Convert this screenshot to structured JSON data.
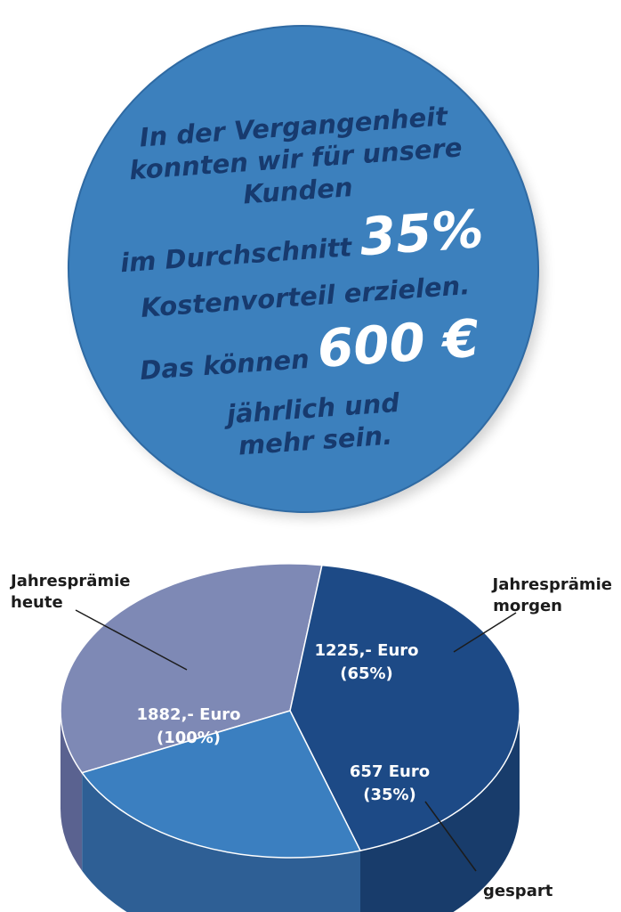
{
  "badge": {
    "line1": "In der Vergangenheit",
    "line2": "konnten wir für unsere",
    "line3": "Kunden",
    "line4_text": "im Durchschnitt",
    "line4_big": "35%",
    "line5": "Kostenvorteil erzielen.",
    "line6_text": "Das können",
    "line6_big": "600 €",
    "line7": "jährlich und",
    "line8": "mehr sein."
  },
  "chart_data": {
    "type": "pie",
    "slices": [
      {
        "name": "heute",
        "value_label": "1882,- Euro",
        "percent_label": "(100%)",
        "value": 1882,
        "color": "#7e89b5"
      },
      {
        "name": "morgen",
        "value_label": "1225,- Euro",
        "percent_label": "(65%)",
        "value": 1225,
        "color": "#1d4a86"
      },
      {
        "name": "gespart",
        "value_label": "657 Euro",
        "percent_label": "(35%)",
        "value": 657,
        "color": "#3b7fc0"
      }
    ],
    "callouts": {
      "heute": [
        "Jahresprämie",
        "heute"
      ],
      "morgen": [
        "Jahresprämie",
        "morgen"
      ],
      "gespart": "gespart"
    }
  }
}
